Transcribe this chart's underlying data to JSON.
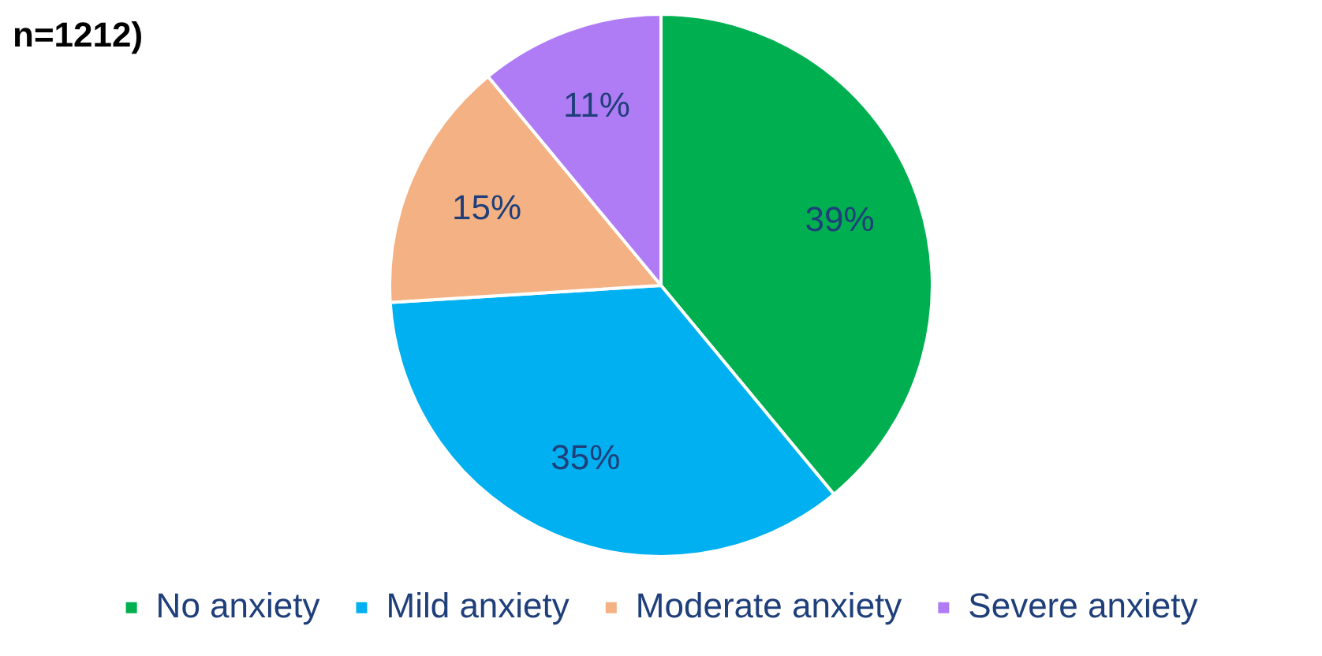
{
  "chart_data": {
    "type": "pie",
    "title": "n=1212)",
    "categories": [
      "No anxiety",
      "Mild anxiety",
      "Moderate anxiety",
      "Severe anxiety"
    ],
    "values": [
      39,
      35,
      15,
      11
    ],
    "colors": [
      "#00b050",
      "#00b0f0",
      "#f4b183",
      "#b07cf5"
    ],
    "value_labels": [
      "39%",
      "35%",
      "15%",
      "11%"
    ],
    "legend": "bottom"
  }
}
